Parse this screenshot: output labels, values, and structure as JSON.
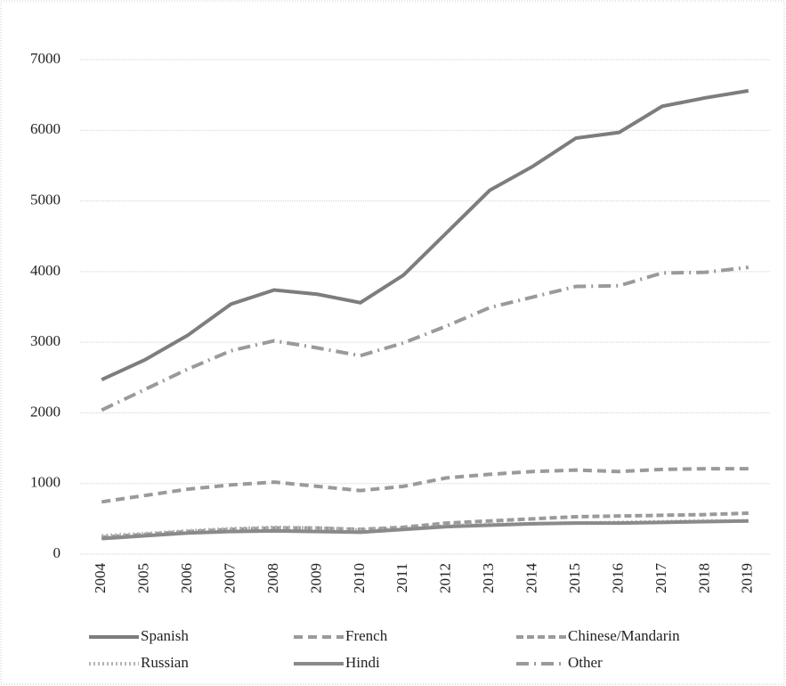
{
  "chart_data": {
    "type": "line",
    "categories": [
      "2004",
      "2005",
      "2006",
      "2007",
      "2008",
      "2009",
      "2010",
      "2011",
      "2012",
      "2013",
      "2014",
      "2015",
      "2016",
      "2017",
      "2018",
      "2019"
    ],
    "series": [
      {
        "name": "Spanish",
        "color": "#7d7d7d",
        "dash": "none",
        "values": [
          2470,
          2750,
          3100,
          3540,
          3740,
          3680,
          3560,
          3950,
          4550,
          5150,
          5490,
          5890,
          5970,
          6340,
          6460,
          6560
        ]
      },
      {
        "name": "French",
        "color": "#9a9a9a",
        "dash": "10 6",
        "values": [
          740,
          830,
          920,
          980,
          1020,
          960,
          900,
          960,
          1080,
          1130,
          1170,
          1190,
          1170,
          1200,
          1210,
          1210
        ]
      },
      {
        "name": "Chinese/Mandarin",
        "color": "#9a9a9a",
        "dash": "8 4",
        "values": [
          240,
          280,
          320,
          350,
          370,
          370,
          350,
          380,
          440,
          470,
          500,
          530,
          540,
          550,
          560,
          580
        ]
      },
      {
        "name": "Russian",
        "color": "#b5b5b5",
        "dash": "2 3",
        "values": [
          260,
          290,
          330,
          360,
          380,
          370,
          340,
          360,
          400,
          420,
          430,
          440,
          450,
          460,
          470,
          470
        ]
      },
      {
        "name": "Hindi",
        "color": "#8a8a8a",
        "dash": "none",
        "values": [
          220,
          260,
          300,
          320,
          330,
          320,
          310,
          350,
          390,
          410,
          430,
          440,
          440,
          450,
          460,
          470
        ]
      },
      {
        "name": "Other",
        "color": "#9a9a9a",
        "dash": "14 6 2 6",
        "values": [
          2040,
          2330,
          2620,
          2880,
          3020,
          2920,
          2810,
          2990,
          3230,
          3490,
          3640,
          3790,
          3800,
          3980,
          3990,
          4060
        ]
      }
    ],
    "ylim": [
      0,
      7000
    ],
    "yticks": [
      0,
      1000,
      2000,
      3000,
      4000,
      5000,
      6000,
      7000
    ],
    "grid": true,
    "legend": "bottom"
  }
}
